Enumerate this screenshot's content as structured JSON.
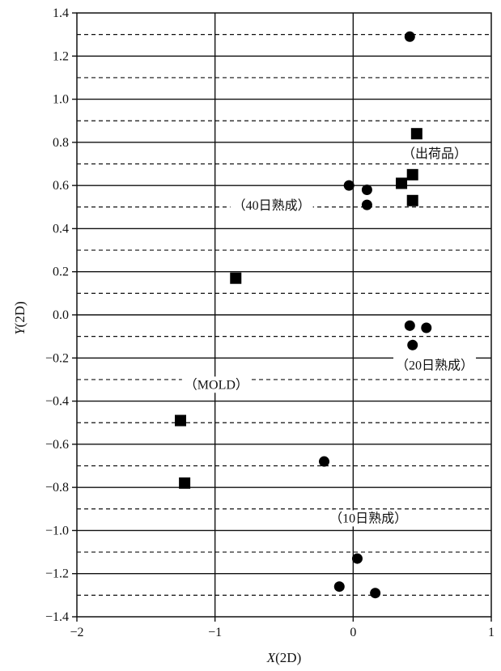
{
  "chart_data": {
    "type": "scatter",
    "title": "",
    "xlabel_var": "X",
    "xlabel_unit": "(2D)",
    "ylabel_var": "Y",
    "ylabel_unit": "(2D)",
    "xlim": [
      -2,
      1
    ],
    "ylim": [
      -1.4,
      1.4
    ],
    "xticks": [
      -2,
      -1,
      0,
      1
    ],
    "xtick_labels": [
      "−2",
      "−1",
      "0",
      "1"
    ],
    "yticks": [
      -1.4,
      -1.2,
      -1.0,
      -0.8,
      -0.6,
      -0.4,
      -0.2,
      0.0,
      0.2,
      0.4,
      0.6,
      0.8,
      1.0,
      1.2,
      1.4
    ],
    "ytick_labels": [
      "−1.4",
      "−1.2",
      "−1.0",
      "−0.8",
      "−0.6",
      "−0.4",
      "−0.2",
      "0.0",
      "0.2",
      "0.4",
      "0.6",
      "0.8",
      "1.0",
      "1.2",
      "1.4"
    ],
    "grid": {
      "major_horizontal": "solid",
      "minor_horizontal": "dashed",
      "vertical": "solid"
    },
    "series": [
      {
        "marker": "circle",
        "points": [
          {
            "x": 0.41,
            "y": 1.29
          },
          {
            "x": -0.03,
            "y": 0.6
          },
          {
            "x": 0.1,
            "y": 0.58
          },
          {
            "x": 0.1,
            "y": 0.51
          },
          {
            "x": 0.41,
            "y": -0.05
          },
          {
            "x": 0.53,
            "y": -0.06
          },
          {
            "x": 0.43,
            "y": -0.14
          },
          {
            "x": -0.21,
            "y": -0.68
          },
          {
            "x": 0.03,
            "y": -1.13
          },
          {
            "x": -0.1,
            "y": -1.26
          },
          {
            "x": 0.16,
            "y": -1.29
          }
        ]
      },
      {
        "marker": "square",
        "points": [
          {
            "x": 0.46,
            "y": 0.84
          },
          {
            "x": 0.43,
            "y": 0.65
          },
          {
            "x": 0.35,
            "y": 0.61
          },
          {
            "x": 0.43,
            "y": 0.53
          },
          {
            "x": -0.85,
            "y": 0.17
          },
          {
            "x": -1.25,
            "y": -0.49
          },
          {
            "x": -1.22,
            "y": -0.78
          }
        ]
      }
    ],
    "annotations": [
      {
        "text": "（出荷品）",
        "x": 0.59,
        "y": 0.75
      },
      {
        "text": "（40日熟成）",
        "x": -0.59,
        "y": 0.51
      },
      {
        "text": "（20日熟成）",
        "x": 0.59,
        "y": -0.23
      },
      {
        "text": "（MOLD）",
        "x": -0.99,
        "y": -0.32
      },
      {
        "text": "（10日熟成）",
        "x": 0.11,
        "y": -0.94
      }
    ]
  }
}
